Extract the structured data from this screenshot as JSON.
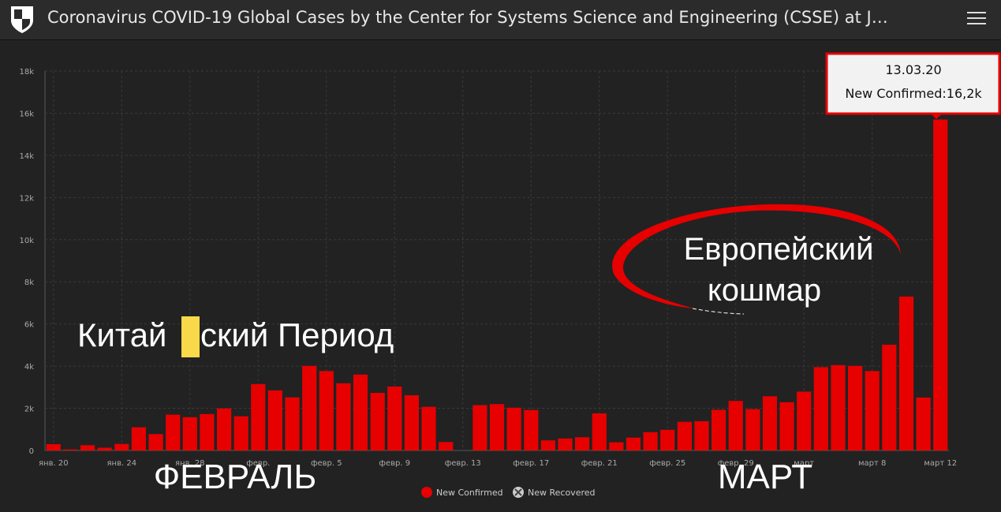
{
  "header": {
    "title": "Coronavirus COVID-19 Global Cases by the Center for Systems Science and Engineering (CSSE) at J…",
    "logo_icon": "university-shield-icon",
    "menu_icon": "hamburger-menu-icon"
  },
  "colors": {
    "bar": "#e60000",
    "background": "#222222",
    "grid": "#3a3a3a",
    "tooltip_border": "#e60000"
  },
  "chart_data": {
    "type": "bar",
    "ylim": [
      0,
      18000
    ],
    "yticks": [
      {
        "value": 0,
        "label": "0"
      },
      {
        "value": 2000,
        "label": "2k"
      },
      {
        "value": 4000,
        "label": "4k"
      },
      {
        "value": 6000,
        "label": "6k"
      },
      {
        "value": 8000,
        "label": "8k"
      },
      {
        "value": 10000,
        "label": "10k"
      },
      {
        "value": 12000,
        "label": "12k"
      },
      {
        "value": 14000,
        "label": "14k"
      },
      {
        "value": 16000,
        "label": "16k"
      },
      {
        "value": 18000,
        "label": "18k"
      }
    ],
    "x_start": "2020-01-20",
    "xticks": [
      {
        "index": 0,
        "label": "янв. 20"
      },
      {
        "index": 4,
        "label": "янв. 24"
      },
      {
        "index": 8,
        "label": "янв. 28"
      },
      {
        "index": 12,
        "label": "февр."
      },
      {
        "index": 16,
        "label": "февр. 5"
      },
      {
        "index": 20,
        "label": "февр. 9"
      },
      {
        "index": 24,
        "label": "февр. 13"
      },
      {
        "index": 28,
        "label": "февр. 17"
      },
      {
        "index": 32,
        "label": "февр. 21"
      },
      {
        "index": 36,
        "label": "февр. 25"
      },
      {
        "index": 40,
        "label": "февр. 29"
      },
      {
        "index": 44,
        "label": "март"
      },
      {
        "index": 48,
        "label": "март 8"
      },
      {
        "index": 52,
        "label": "март 12"
      }
    ],
    "series": [
      {
        "name": "New Confirmed",
        "values": [
          300,
          50,
          250,
          130,
          310,
          1100,
          780,
          1700,
          1580,
          1730,
          1990,
          1620,
          3150,
          2850,
          2520,
          4010,
          3770,
          3190,
          3600,
          2730,
          3030,
          2620,
          2070,
          400,
          null,
          2150,
          2200,
          2030,
          1920,
          480,
          570,
          630,
          1760,
          390,
          610,
          870,
          980,
          1360,
          1390,
          1930,
          2350,
          1960,
          2570,
          2290,
          2790,
          3950,
          4050,
          4010,
          3770,
          5020,
          7300,
          2510,
          15700
        ]
      },
      {
        "name": "New Recovered",
        "values": []
      }
    ],
    "tooltip": {
      "date": "13.03.20",
      "text": "New Confirmed:16,2k"
    },
    "annotations": {
      "china": "Китай",
      "china_rest": "ский Период",
      "europe_line1": "Европейский",
      "europe_line2": "кошмар",
      "february": "ФЕВРАЛЬ",
      "march": "МАРТ"
    },
    "legend": [
      {
        "label": "New Confirmed",
        "color": "#e60000"
      },
      {
        "label": "New Recovered",
        "color": "#cccccc"
      }
    ]
  }
}
